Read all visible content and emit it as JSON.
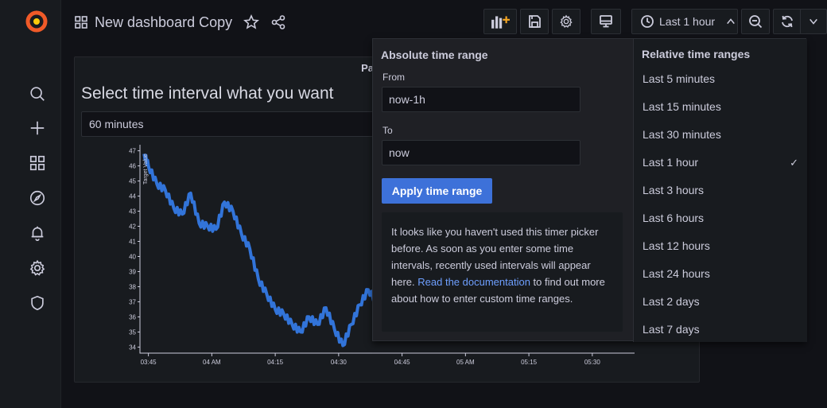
{
  "dashboard": {
    "title": "New dashboard Copy"
  },
  "toolbar": {
    "time_range_label": "Last 1 hour"
  },
  "panel": {
    "header_title": "Panel Title",
    "heading": "Select time interval what you want",
    "select_value": "60 minutes"
  },
  "chart_data": {
    "type": "line",
    "ylabel": "Target Value",
    "ylim": [
      34,
      47
    ],
    "y_ticks": [
      "47",
      "46",
      "45",
      "44",
      "43",
      "42",
      "41",
      "40",
      "39",
      "38",
      "37",
      "36",
      "35",
      "34"
    ],
    "x_ticks": [
      "03:45",
      "04 AM",
      "04:15",
      "04:30",
      "04:45",
      "05 AM",
      "05:15",
      "05:30"
    ],
    "series": [
      {
        "color": "#3274d9",
        "x": [
          "03:44",
          "03:45",
          "03:47",
          "03:49",
          "03:51",
          "03:53",
          "03:55",
          "03:57",
          "03:59",
          "04:01",
          "04:03",
          "04:05",
          "04:07",
          "04:09",
          "04:11",
          "04:13",
          "04:15",
          "04:17",
          "04:19",
          "04:21",
          "04:23",
          "04:25",
          "04:27",
          "04:29",
          "04:31",
          "04:33",
          "04:35",
          "04:37",
          "04:39",
          "04:41",
          "04:43"
        ],
        "values": [
          46.8,
          46.0,
          44.8,
          44.4,
          43.2,
          42.8,
          44.2,
          42.2,
          42.0,
          41.8,
          43.6,
          43.0,
          41.5,
          40.5,
          38.5,
          37.5,
          36.5,
          36.2,
          35.5,
          35.0,
          36.0,
          35.5,
          36.6,
          35.2,
          34.1,
          35.5,
          36.8,
          37.8,
          37.0,
          35.5,
          35.0
        ]
      }
    ]
  },
  "picker": {
    "absolute_title": "Absolute time range",
    "from_label": "From",
    "from_value": "now-1h",
    "to_label": "To",
    "to_value": "now",
    "apply_label": "Apply time range",
    "info_text": "It looks like you haven't used this timer picker before. As soon as you enter some time intervals, recently used intervals will appear here.",
    "info_link": "Read the documentation",
    "info_tail": " to find out more about how to enter custom time ranges.",
    "relative_title": "Relative time ranges",
    "relative_items": [
      {
        "label": "Last 5 minutes",
        "selected": false
      },
      {
        "label": "Last 15 minutes",
        "selected": false
      },
      {
        "label": "Last 30 minutes",
        "selected": false
      },
      {
        "label": "Last 1 hour",
        "selected": true
      },
      {
        "label": "Last 3 hours",
        "selected": false
      },
      {
        "label": "Last 6 hours",
        "selected": false
      },
      {
        "label": "Last 12 hours",
        "selected": false
      },
      {
        "label": "Last 24 hours",
        "selected": false
      },
      {
        "label": "Last 2 days",
        "selected": false
      },
      {
        "label": "Last 7 days",
        "selected": false
      }
    ],
    "check_glyph": "✓"
  }
}
